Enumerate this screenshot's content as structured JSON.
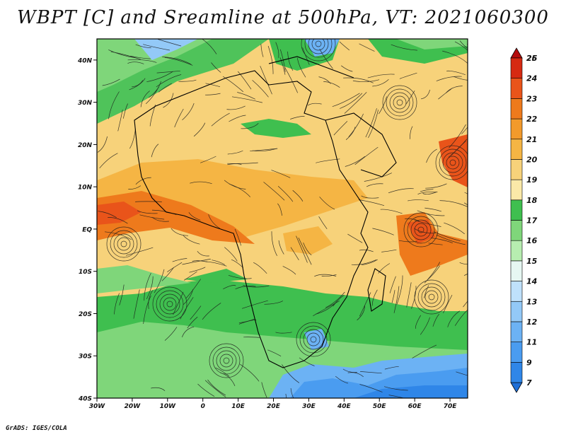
{
  "title": "WBPT [C] and Sreamline at 500hPa, VT: 2021060300",
  "credit": "GrADS: IGES/COLA",
  "map": {
    "lat_labels": [
      "40N",
      "30N",
      "20N",
      "10N",
      "EQ",
      "10S",
      "20S",
      "30S",
      "40S"
    ],
    "lon_labels": [
      "30W",
      "20W",
      "10W",
      "0",
      "10E",
      "20E",
      "30E",
      "40E",
      "50E",
      "60E",
      "70E"
    ],
    "lon_range": [
      -30,
      75
    ],
    "lat_range": [
      -40,
      45
    ]
  },
  "colorbar": {
    "labels": [
      "7",
      "9",
      "11",
      "12",
      "13",
      "14",
      "15",
      "16",
      "17",
      "18",
      "19",
      "20",
      "21",
      "22",
      "23",
      "24",
      "25",
      "26"
    ],
    "colors": [
      "#1f6fd6",
      "#2f86e8",
      "#4a9cf0",
      "#6cb2f4",
      "#93c9f7",
      "#bfe1fb",
      "#e6f7f2",
      "#b7edb0",
      "#7fd67a",
      "#3fbf4f",
      "#fbe9a8",
      "#f7d27a",
      "#f5b544",
      "#f29a2b",
      "#ee7a1c",
      "#e9541a",
      "#d62a12",
      "#b40c0c"
    ]
  }
}
